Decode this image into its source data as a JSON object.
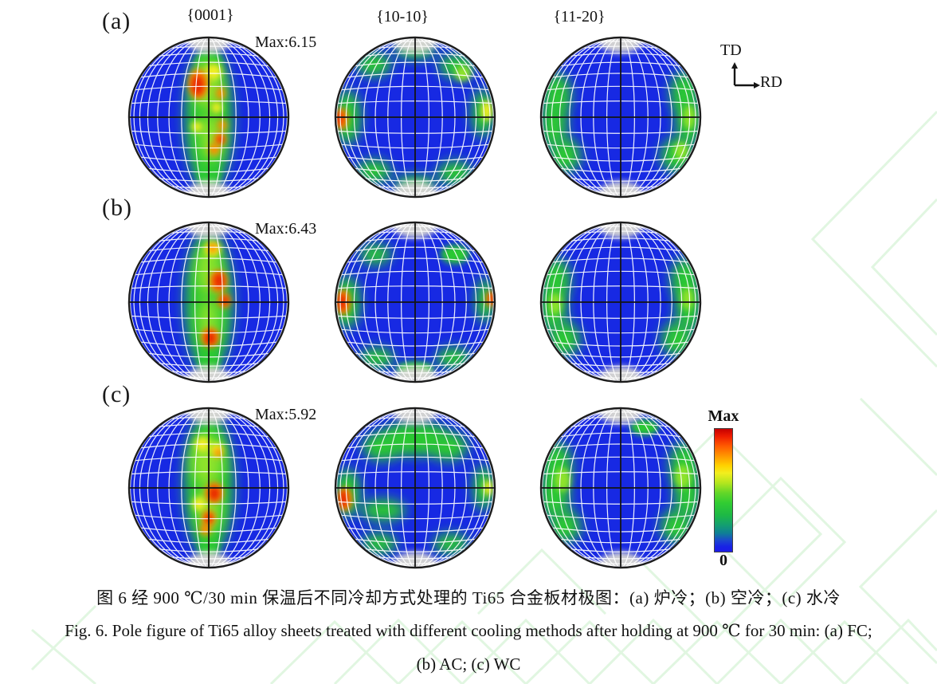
{
  "palette": {
    "blue": "#1729e3",
    "green": "#2bc832",
    "bright": "#8fe32a",
    "yellow": "#f2ee22",
    "orange": "#ff8c00",
    "red": "#e62500",
    "cap": "#d8d7d2",
    "grid": "#ffffff",
    "axis": "#151515",
    "watermark": "#c9efc9"
  },
  "header": {
    "columns": [
      "{0001}",
      "{10-10}",
      "{11-20}"
    ]
  },
  "rows": [
    {
      "label": "(a)",
      "max_label": "Max:6.15"
    },
    {
      "label": "(b)",
      "max_label": "Max:6.43"
    },
    {
      "label": "(c)",
      "max_label": "Max:5.92"
    }
  ],
  "direction_indicator": {
    "vertical": "TD",
    "horizontal": "RD"
  },
  "colorbar": {
    "top_label": "Max",
    "bottom_label": "0"
  },
  "caption": {
    "line_zh": "图 6  经 900 ℃/30 min 保温后不同冷却方式处理的 Ti65 合金板材极图：(a) 炉冷；(b) 空冷；(c) 水冷",
    "line_en_1": "Fig. 6. Pole figure of Ti65 alloy sheets treated with different cooling methods after holding at 900 ℃ for 30 min: (a) FC;",
    "line_en_2": "(b) AC; (c) WC"
  },
  "pole_figures": [
    {
      "id": "a-0001",
      "row": 0,
      "col": 0,
      "plane": "{0001}",
      "max": 6.15,
      "spots": [
        [
          0,
          0.02,
          0.3,
          0.9,
          "g"
        ],
        [
          0,
          -0.7,
          0.16,
          0.12,
          "g"
        ],
        [
          0,
          0.72,
          0.14,
          0.16,
          "g"
        ],
        [
          -0.02,
          -0.4,
          0.18,
          0.3,
          "b"
        ],
        [
          0.03,
          0.25,
          0.14,
          0.3,
          "b"
        ],
        [
          0.06,
          -0.57,
          0.1,
          0.1,
          "y"
        ],
        [
          0.1,
          -0.12,
          0.07,
          0.07,
          "y"
        ],
        [
          -0.15,
          0.12,
          0.07,
          0.07,
          "y"
        ],
        [
          -0.13,
          -0.42,
          0.12,
          0.19,
          "o"
        ],
        [
          0.15,
          -0.3,
          0.06,
          0.08,
          "o"
        ],
        [
          0.17,
          0.1,
          0.06,
          0.07,
          "o"
        ],
        [
          0.14,
          0.27,
          0.07,
          0.08,
          "o"
        ],
        [
          0.07,
          0.4,
          0.07,
          0.08,
          "o"
        ],
        [
          -0.14,
          -0.4,
          0.08,
          0.13,
          "r"
        ],
        [
          0.15,
          0.28,
          0.045,
          0.05,
          "r"
        ]
      ]
    },
    {
      "id": "a-1010",
      "row": 0,
      "col": 1,
      "plane": "{10-10}",
      "max": null,
      "spots": [
        [
          -0.85,
          0,
          0.17,
          0.34,
          "g"
        ],
        [
          0.85,
          -0.05,
          0.14,
          0.3,
          "g"
        ],
        [
          -0.52,
          -0.66,
          0.22,
          0.15,
          "g"
        ],
        [
          0.52,
          -0.64,
          0.22,
          0.15,
          "g"
        ],
        [
          -0.52,
          0.68,
          0.22,
          0.15,
          "g"
        ],
        [
          0.5,
          0.7,
          0.22,
          0.15,
          "g"
        ],
        [
          0,
          0.84,
          0.26,
          0.11,
          "g"
        ],
        [
          0,
          -0.84,
          0.26,
          0.11,
          "g"
        ],
        [
          0.6,
          -0.55,
          0.1,
          0.1,
          "b"
        ],
        [
          0.9,
          -0.08,
          0.07,
          0.13,
          "y"
        ],
        [
          -0.92,
          0.02,
          0.08,
          0.14,
          "o"
        ],
        [
          -0.95,
          0.02,
          0.05,
          0.09,
          "r"
        ]
      ]
    },
    {
      "id": "a-1120",
      "row": 0,
      "col": 2,
      "plane": "{11-20}",
      "max": null,
      "spots": [
        [
          -0.8,
          -0.28,
          0.18,
          0.28,
          "g"
        ],
        [
          -0.84,
          0.1,
          0.17,
          0.3,
          "g"
        ],
        [
          -0.7,
          0.48,
          0.2,
          0.22,
          "g"
        ],
        [
          0.8,
          -0.3,
          0.18,
          0.28,
          "g"
        ],
        [
          0.85,
          0.08,
          0.16,
          0.3,
          "g"
        ],
        [
          0.7,
          0.48,
          0.2,
          0.22,
          "g"
        ],
        [
          0.86,
          0,
          0.08,
          0.15,
          "b"
        ],
        [
          0.76,
          0.42,
          0.09,
          0.11,
          "b"
        ]
      ]
    },
    {
      "id": "b-0001",
      "row": 1,
      "col": 0,
      "plane": "{0001}",
      "max": 6.43,
      "spots": [
        [
          0,
          0,
          0.3,
          0.9,
          "g"
        ],
        [
          0,
          0.74,
          0.13,
          0.15,
          "g"
        ],
        [
          0,
          -0.4,
          0.15,
          0.32,
          "b"
        ],
        [
          0,
          0.22,
          0.12,
          0.28,
          "b"
        ],
        [
          0.05,
          -0.67,
          0.1,
          0.09,
          "y"
        ],
        [
          0.05,
          -0.68,
          0.06,
          0.06,
          "o"
        ],
        [
          0.12,
          -0.26,
          0.11,
          0.14,
          "o"
        ],
        [
          0.19,
          -0.02,
          0.08,
          0.09,
          "o"
        ],
        [
          0.02,
          0.44,
          0.11,
          0.12,
          "o"
        ],
        [
          0.13,
          -0.27,
          0.07,
          0.1,
          "r"
        ],
        [
          0.2,
          -0.02,
          0.05,
          0.06,
          "r"
        ],
        [
          0.02,
          0.45,
          0.07,
          0.09,
          "r"
        ]
      ]
    },
    {
      "id": "b-1010",
      "row": 1,
      "col": 1,
      "plane": "{10-10}",
      "max": null,
      "spots": [
        [
          -0.86,
          0,
          0.17,
          0.33,
          "g"
        ],
        [
          0.88,
          -0.02,
          0.12,
          0.28,
          "g"
        ],
        [
          -0.5,
          -0.6,
          0.2,
          0.13,
          "g"
        ],
        [
          0.5,
          -0.6,
          0.18,
          0.12,
          "g"
        ],
        [
          -0.48,
          0.7,
          0.22,
          0.13,
          "g"
        ],
        [
          0.48,
          0.7,
          0.22,
          0.13,
          "g"
        ],
        [
          0,
          0.84,
          0.24,
          0.1,
          "g"
        ],
        [
          -0.9,
          0,
          0.09,
          0.16,
          "o"
        ],
        [
          0.95,
          -0.04,
          0.06,
          0.1,
          "o"
        ],
        [
          -0.92,
          0,
          0.06,
          0.11,
          "r"
        ],
        [
          0.97,
          -0.04,
          0.04,
          0.07,
          "r"
        ]
      ]
    },
    {
      "id": "b-1120",
      "row": 1,
      "col": 2,
      "plane": "{11-20}",
      "max": null,
      "spots": [
        [
          -0.81,
          -0.28,
          0.18,
          0.28,
          "g"
        ],
        [
          -0.85,
          0.08,
          0.17,
          0.3,
          "g"
        ],
        [
          -0.71,
          0.46,
          0.2,
          0.22,
          "g"
        ],
        [
          0.81,
          -0.28,
          0.18,
          0.28,
          "g"
        ],
        [
          0.85,
          0.08,
          0.16,
          0.3,
          "g"
        ],
        [
          0.71,
          0.46,
          0.2,
          0.22,
          "g"
        ],
        [
          -0.82,
          0.02,
          0.08,
          0.14,
          "b"
        ],
        [
          0.84,
          -0.04,
          0.08,
          0.14,
          "b"
        ]
      ]
    },
    {
      "id": "c-0001",
      "row": 2,
      "col": 0,
      "plane": "{0001}",
      "max": 5.92,
      "spots": [
        [
          0,
          -0.05,
          0.31,
          0.9,
          "g"
        ],
        [
          0,
          0.73,
          0.13,
          0.15,
          "g"
        ],
        [
          -0.02,
          -0.35,
          0.2,
          0.33,
          "b"
        ],
        [
          0,
          0.25,
          0.14,
          0.3,
          "b"
        ],
        [
          -0.08,
          -0.55,
          0.09,
          0.09,
          "y"
        ],
        [
          0.1,
          -0.48,
          0.08,
          0.08,
          "y"
        ],
        [
          -0.12,
          0.2,
          0.08,
          0.09,
          "y"
        ],
        [
          0.12,
          -0.44,
          0.05,
          0.06,
          "o"
        ],
        [
          0.07,
          0.06,
          0.11,
          0.13,
          "o"
        ],
        [
          0,
          0.38,
          0.08,
          0.1,
          "o"
        ],
        [
          -0.04,
          0.52,
          0.07,
          0.08,
          "o"
        ],
        [
          0.07,
          0.07,
          0.07,
          0.09,
          "r"
        ],
        [
          0,
          0.38,
          0.05,
          0.06,
          "r"
        ]
      ]
    },
    {
      "id": "c-1010",
      "row": 2,
      "col": 1,
      "plane": "{10-10}",
      "max": null,
      "spots": [
        [
          0,
          -0.62,
          0.42,
          0.22,
          "g"
        ],
        [
          -0.42,
          -0.52,
          0.24,
          0.18,
          "g"
        ],
        [
          0.42,
          -0.52,
          0.24,
          0.18,
          "g"
        ],
        [
          -0.85,
          0.06,
          0.16,
          0.3,
          "g"
        ],
        [
          0.86,
          0,
          0.13,
          0.28,
          "g"
        ],
        [
          -0.45,
          0.7,
          0.22,
          0.13,
          "g"
        ],
        [
          0.45,
          0.7,
          0.22,
          0.13,
          "g"
        ],
        [
          -0.4,
          0.28,
          0.28,
          0.14,
          "g"
        ],
        [
          0.92,
          0,
          0.06,
          0.1,
          "y"
        ],
        [
          -0.88,
          0.14,
          0.09,
          0.15,
          "o"
        ],
        [
          -0.9,
          0.14,
          0.06,
          0.11,
          "r"
        ]
      ]
    },
    {
      "id": "c-1120",
      "row": 2,
      "col": 2,
      "plane": "{11-20}",
      "max": null,
      "spots": [
        [
          -0.8,
          -0.28,
          0.19,
          0.3,
          "g"
        ],
        [
          -0.83,
          0.1,
          0.19,
          0.3,
          "g"
        ],
        [
          -0.7,
          0.48,
          0.2,
          0.21,
          "g"
        ],
        [
          0.8,
          -0.28,
          0.19,
          0.3,
          "g"
        ],
        [
          0.84,
          0.1,
          0.17,
          0.3,
          "g"
        ],
        [
          0.7,
          0.48,
          0.2,
          0.21,
          "g"
        ],
        [
          0.3,
          -0.76,
          0.18,
          0.1,
          "g"
        ],
        [
          -0.73,
          -0.1,
          0.1,
          0.15,
          "b"
        ],
        [
          0.78,
          -0.14,
          0.1,
          0.15,
          "b"
        ]
      ]
    }
  ]
}
